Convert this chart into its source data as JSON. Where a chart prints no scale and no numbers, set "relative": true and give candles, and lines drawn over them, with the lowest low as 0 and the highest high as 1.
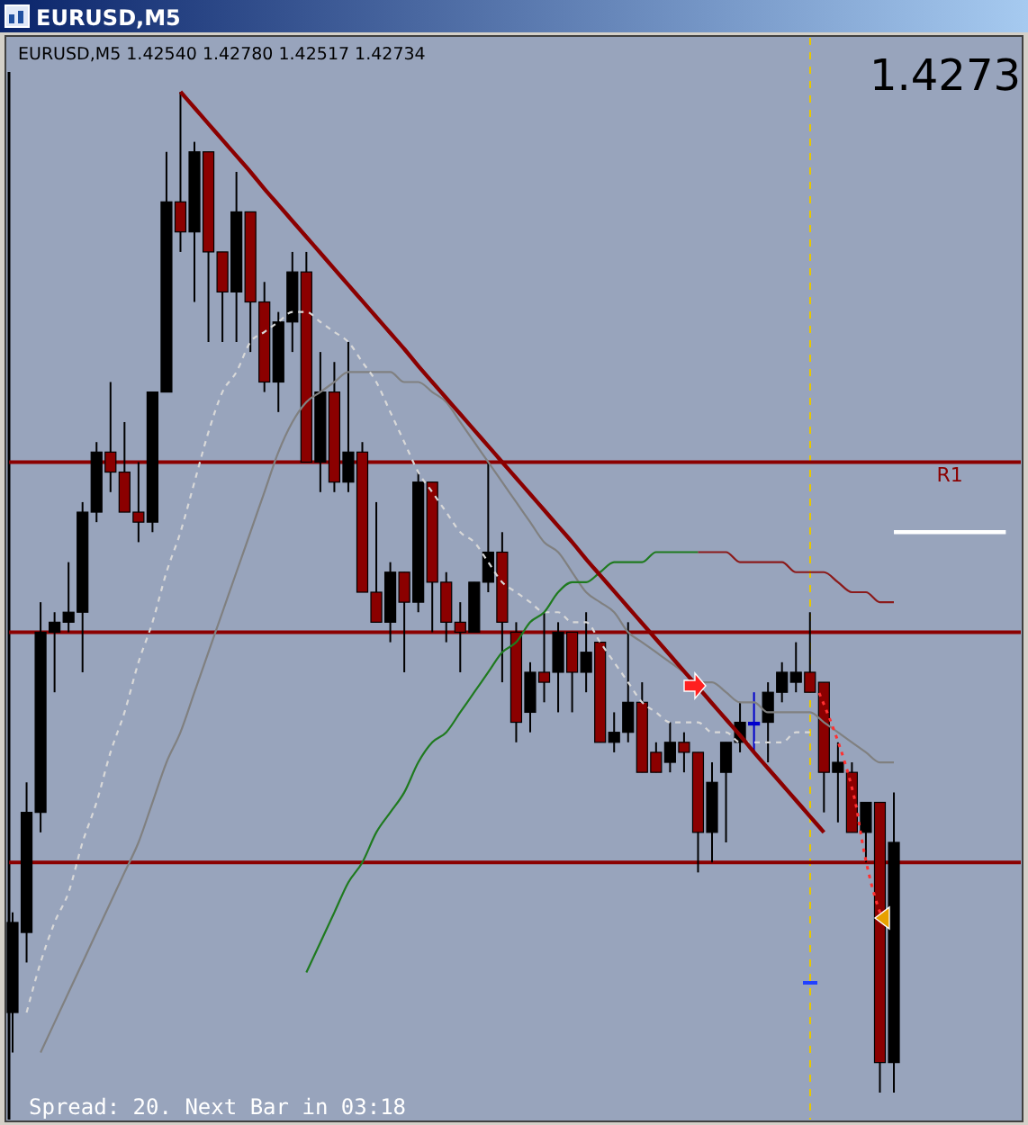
{
  "chart_data": {
    "type": "candlestick",
    "relative": true,
    "title": "EURUSD,M5",
    "subtitle": "EURUSD,M5  1.42540 1.42780 1.42517 1.42734",
    "annotations": [
      "1.4273",
      "Spread: 20. Next Bar in 03:18"
    ],
    "categories": [
      null,
      null,
      null,
      null,
      null,
      null,
      null,
      null,
      null,
      null,
      null,
      null,
      null,
      null,
      null,
      null,
      null,
      null,
      null,
      null,
      null,
      null,
      null,
      null,
      null,
      null,
      null,
      null,
      null,
      null,
      null,
      null,
      null,
      null,
      null,
      null,
      null,
      null,
      null,
      null,
      null,
      null,
      null,
      null,
      null,
      null,
      null,
      null,
      null,
      null,
      null,
      null,
      null,
      null,
      null,
      null,
      null,
      null,
      null,
      null,
      null,
      null,
      null,
      null,
      null,
      null,
      null,
      null,
      null,
      null,
      null,
      null
    ],
    "ohlc": [
      [
        0.08,
        0.18,
        0.04,
        0.17
      ],
      [
        0.16,
        0.31,
        0.13,
        0.28
      ],
      [
        0.28,
        0.49,
        0.26,
        0.46
      ],
      [
        0.46,
        0.48,
        0.4,
        0.47
      ],
      [
        0.47,
        0.53,
        0.46,
        0.48
      ],
      [
        0.48,
        0.59,
        0.42,
        0.58
      ],
      [
        0.58,
        0.65,
        0.57,
        0.64
      ],
      [
        0.64,
        0.71,
        0.6,
        0.62
      ],
      [
        0.62,
        0.67,
        0.58,
        0.58
      ],
      [
        0.58,
        0.63,
        0.55,
        0.57
      ],
      [
        0.57,
        0.7,
        0.56,
        0.7
      ],
      [
        0.7,
        0.94,
        0.7,
        0.89
      ],
      [
        0.89,
        1.0,
        0.84,
        0.86
      ],
      [
        0.86,
        0.95,
        0.79,
        0.94
      ],
      [
        0.94,
        0.94,
        0.75,
        0.84
      ],
      [
        0.84,
        0.84,
        0.75,
        0.8
      ],
      [
        0.8,
        0.92,
        0.75,
        0.88
      ],
      [
        0.88,
        0.88,
        0.74,
        0.79
      ],
      [
        0.79,
        0.81,
        0.7,
        0.71
      ],
      [
        0.71,
        0.78,
        0.68,
        0.77
      ],
      [
        0.77,
        0.84,
        0.74,
        0.82
      ],
      [
        0.82,
        0.84,
        0.63,
        0.63
      ],
      [
        0.63,
        0.74,
        0.6,
        0.7
      ],
      [
        0.7,
        0.73,
        0.6,
        0.61
      ],
      [
        0.61,
        0.75,
        0.6,
        0.64
      ],
      [
        0.64,
        0.65,
        0.5,
        0.5
      ],
      [
        0.5,
        0.59,
        0.47,
        0.47
      ],
      [
        0.47,
        0.53,
        0.45,
        0.52
      ],
      [
        0.52,
        0.52,
        0.42,
        0.49
      ],
      [
        0.49,
        0.62,
        0.48,
        0.61
      ],
      [
        0.61,
        0.61,
        0.46,
        0.51
      ],
      [
        0.51,
        0.52,
        0.45,
        0.47
      ],
      [
        0.47,
        0.49,
        0.42,
        0.46
      ],
      [
        0.46,
        0.51,
        0.46,
        0.51
      ],
      [
        0.51,
        0.63,
        0.5,
        0.54
      ],
      [
        0.54,
        0.56,
        0.41,
        0.47
      ],
      [
        0.46,
        0.47,
        0.35,
        0.37
      ],
      [
        0.38,
        0.43,
        0.36,
        0.42
      ],
      [
        0.42,
        0.48,
        0.39,
        0.41
      ],
      [
        0.42,
        0.47,
        0.38,
        0.46
      ],
      [
        0.46,
        0.46,
        0.38,
        0.42
      ],
      [
        0.42,
        0.48,
        0.4,
        0.44
      ],
      [
        0.45,
        0.45,
        0.35,
        0.35
      ],
      [
        0.35,
        0.38,
        0.34,
        0.36
      ],
      [
        0.36,
        0.47,
        0.35,
        0.39
      ],
      [
        0.39,
        0.41,
        0.32,
        0.32
      ],
      [
        0.34,
        0.35,
        0.32,
        0.32
      ],
      [
        0.33,
        0.37,
        0.32,
        0.35
      ],
      [
        0.35,
        0.36,
        0.32,
        0.34
      ],
      [
        0.34,
        0.34,
        0.22,
        0.26
      ],
      [
        0.26,
        0.33,
        0.23,
        0.31
      ],
      [
        0.32,
        0.35,
        0.25,
        0.35
      ],
      [
        0.35,
        0.39,
        0.34,
        0.37
      ],
      [
        0.37,
        0.4,
        0.34,
        0.37
      ],
      [
        0.37,
        0.41,
        0.33,
        0.4
      ],
      [
        0.4,
        0.43,
        0.39,
        0.42
      ],
      [
        0.41,
        0.45,
        0.4,
        0.42
      ],
      [
        0.42,
        0.48,
        0.4,
        0.4
      ],
      [
        0.41,
        0.41,
        0.28,
        0.32
      ],
      [
        0.32,
        0.35,
        0.27,
        0.33
      ],
      [
        0.32,
        0.33,
        0.26,
        0.26
      ],
      [
        0.26,
        0.29,
        0.23,
        0.29
      ],
      [
        0.29,
        0.29,
        0.0,
        0.03
      ],
      [
        0.03,
        0.3,
        0.0,
        0.25
      ],
      null,
      null,
      null,
      null,
      null,
      null,
      null,
      null
    ],
    "colors": [
      "#000000",
      "#000000",
      "#000000",
      "#000000",
      "#000000",
      "#000000",
      "#000000",
      "#8b0000",
      "#8b0000",
      "#8b0000",
      "#000000",
      "#000000",
      "#8b0000",
      "#000000",
      "#8b0000",
      "#8b0000",
      "#000000",
      "#8b0000",
      "#8b0000",
      "#000000",
      "#000000",
      "#8b0000",
      "#000000",
      "#8b0000",
      "#000000",
      "#8b0000",
      "#8b0000",
      "#000000",
      "#8b0000",
      "#000000",
      "#8b0000",
      "#8b0000",
      "#8b0000",
      "#000000",
      "#000000",
      "#8b0000",
      "#8b0000",
      "#000000",
      "#8b0000",
      "#000000",
      "#8b0000",
      "#000000",
      "#8b0000",
      "#000000",
      "#000000",
      "#8b0000",
      "#8b0000",
      "#000000",
      "#8b0000",
      "#8b0000",
      "#000000",
      "#000000",
      "#000000",
      "#0000cc",
      "#000000",
      "#000000",
      "#000000",
      "#8b0000",
      "#8b0000",
      "#000000",
      "#8b0000",
      "#000000",
      "#8b0000",
      "#000000",
      null,
      null,
      null,
      null,
      null,
      null,
      null,
      null
    ],
    "series": [
      {
        "type": "line",
        "color": "#808080",
        "values": [
          null,
          null,
          0.04,
          0.07,
          0.1,
          0.13,
          0.16,
          0.19,
          0.22,
          0.25,
          0.29,
          0.33,
          0.36,
          0.4,
          0.44,
          0.48,
          0.52,
          0.56,
          0.6,
          0.64,
          0.67,
          0.69,
          0.7,
          0.71,
          0.72,
          0.72,
          0.72,
          0.72,
          0.71,
          0.71,
          0.7,
          0.69,
          0.67,
          0.65,
          0.63,
          0.61,
          0.59,
          0.57,
          0.55,
          0.54,
          0.52,
          0.5,
          0.49,
          0.48,
          0.46,
          0.45,
          0.44,
          0.43,
          0.42,
          0.41,
          0.41,
          0.4,
          0.39,
          0.39,
          0.38,
          0.38,
          0.38,
          0.38,
          0.37,
          0.36,
          0.35,
          0.34,
          0.33,
          0.33,
          null,
          null,
          null,
          null,
          null,
          null,
          null,
          null
        ]
      },
      {
        "type": "line",
        "color": "#d8d8d8",
        "line_style": "dashed",
        "values": [
          null,
          0.08,
          0.13,
          0.17,
          0.2,
          0.25,
          0.29,
          0.34,
          0.38,
          0.43,
          0.47,
          0.52,
          0.56,
          0.61,
          0.66,
          0.7,
          0.72,
          0.75,
          0.76,
          0.77,
          0.78,
          0.78,
          0.77,
          0.76,
          0.75,
          0.73,
          0.71,
          0.68,
          0.65,
          0.62,
          0.6,
          0.58,
          0.56,
          0.55,
          0.53,
          0.51,
          0.5,
          0.49,
          0.48,
          0.48,
          0.47,
          0.47,
          0.45,
          0.43,
          0.41,
          0.39,
          0.38,
          0.37,
          0.37,
          0.37,
          0.36,
          0.36,
          0.35,
          0.35,
          0.35,
          0.35,
          0.36,
          0.36,
          null,
          null,
          null,
          null,
          null,
          null,
          null,
          null,
          null,
          null,
          null,
          null,
          null,
          null
        ]
      },
      {
        "type": "line",
        "color": "#1f7a1f",
        "values": [
          null,
          null,
          null,
          null,
          null,
          null,
          null,
          null,
          null,
          null,
          null,
          null,
          null,
          null,
          null,
          null,
          null,
          null,
          null,
          null,
          null,
          0.12,
          0.15,
          0.18,
          0.21,
          0.23,
          0.26,
          0.28,
          0.3,
          0.33,
          0.35,
          0.36,
          0.38,
          0.4,
          0.42,
          0.44,
          0.45,
          0.47,
          0.48,
          0.5,
          0.51,
          0.51,
          0.52,
          0.53,
          0.53,
          0.53,
          0.54,
          0.54,
          0.54,
          0.54,
          null,
          null,
          null,
          null,
          null,
          null,
          null,
          null,
          null,
          null,
          null,
          null,
          null,
          null,
          null,
          null,
          null,
          null,
          null,
          null,
          null,
          null
        ]
      },
      {
        "type": "line",
        "color": "#8b1a1a",
        "values": [
          null,
          null,
          null,
          null,
          null,
          null,
          null,
          null,
          null,
          null,
          null,
          null,
          null,
          null,
          null,
          null,
          null,
          null,
          null,
          null,
          null,
          null,
          null,
          null,
          null,
          null,
          null,
          null,
          null,
          null,
          null,
          null,
          null,
          null,
          null,
          null,
          null,
          null,
          null,
          null,
          null,
          null,
          null,
          null,
          null,
          null,
          null,
          null,
          null,
          0.54,
          0.54,
          0.54,
          0.53,
          0.53,
          0.53,
          0.53,
          0.52,
          0.52,
          0.52,
          0.51,
          0.5,
          0.5,
          0.49,
          0.49,
          null,
          null,
          null,
          null,
          null,
          null,
          null,
          null
        ]
      },
      {
        "type": "line",
        "color": "#8b0000",
        "values": [
          null,
          null,
          null,
          null,
          null,
          null,
          null,
          null,
          null,
          null,
          null,
          null,
          1.0,
          0.984,
          0.968,
          0.952,
          0.936,
          0.92,
          0.903,
          0.887,
          0.871,
          0.855,
          0.839,
          0.823,
          0.807,
          0.791,
          0.775,
          0.759,
          0.743,
          0.726,
          0.71,
          0.694,
          0.678,
          0.662,
          0.646,
          0.63,
          0.614,
          0.598,
          0.582,
          0.566,
          0.55,
          0.533,
          0.517,
          0.501,
          0.485,
          0.469,
          0.453,
          0.437,
          0.421,
          0.405,
          0.389,
          0.373,
          0.357,
          0.34,
          0.324,
          0.308,
          0.292,
          0.276,
          0.26,
          null,
          null,
          null,
          null,
          null,
          null,
          null,
          null,
          null,
          null,
          null,
          null,
          null
        ]
      },
      {
        "type": "line",
        "name": "R1",
        "color": "#ffffff",
        "values": [
          null,
          null,
          null,
          null,
          null,
          null,
          null,
          null,
          null,
          null,
          null,
          null,
          null,
          null,
          null,
          null,
          null,
          null,
          null,
          null,
          null,
          null,
          null,
          null,
          null,
          null,
          null,
          null,
          null,
          null,
          null,
          null,
          null,
          null,
          null,
          null,
          null,
          null,
          null,
          null,
          null,
          null,
          null,
          null,
          null,
          null,
          null,
          null,
          null,
          null,
          null,
          null,
          null,
          null,
          null,
          null,
          null,
          null,
          null,
          null,
          null,
          null,
          null,
          0.56,
          0.56,
          0.56,
          0.56,
          0.56,
          0.56,
          0.56,
          0.56,
          0.56
        ]
      }
    ],
    "ref_lines": [
      {
        "axis": "y",
        "value": 0.63,
        "color": "#8b0000"
      },
      {
        "axis": "y",
        "value": 0.46,
        "color": "#8b0000"
      },
      {
        "axis": "y",
        "value": 0.23,
        "color": "#8b0000"
      }
    ]
  }
}
